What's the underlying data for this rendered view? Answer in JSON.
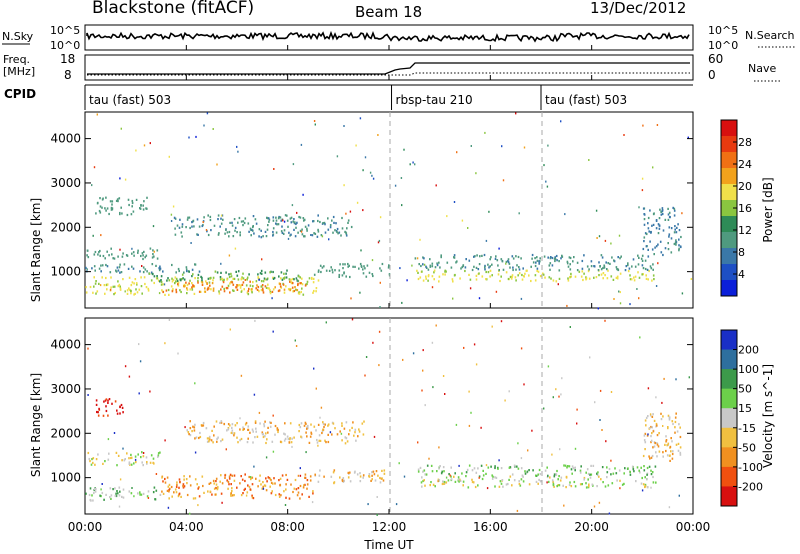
{
  "header": {
    "station": "Blackstone (fitACF)",
    "beam": "Beam 18",
    "date": "13/Dec/2012"
  },
  "noise_panel": {
    "left_label": "N.Sky",
    "left_ticks": [
      "10^5",
      "10^0"
    ],
    "right_ticks": [
      "10^5",
      "10^0"
    ],
    "right_label": "N.Search"
  },
  "freq_panel": {
    "left_label_1": "Freq.",
    "left_label_2": "[MHz]",
    "left_ticks": [
      "18",
      "8"
    ],
    "right_ticks": [
      "60",
      "0"
    ],
    "right_label": "Nave"
  },
  "cpid": {
    "label": "CPID",
    "segments": [
      {
        "name": "tau (fast) 503",
        "start_hour": 0
      },
      {
        "name": "rbsp-tau 210",
        "start_hour": 12.1
      },
      {
        "name": "tau (fast) 503",
        "start_hour": 18
      }
    ]
  },
  "x_axis": {
    "label": "Time UT",
    "ticks": [
      "00:00",
      "04:00",
      "08:00",
      "12:00",
      "16:00",
      "20:00",
      "00:00"
    ],
    "range_hours": [
      0,
      24
    ]
  },
  "chart_data": [
    {
      "type": "heatmap",
      "name": "power",
      "ylabel": "Slant Range [km]",
      "yticks": [
        "1000",
        "2000",
        "3000",
        "4000"
      ],
      "ylim": [
        180,
        4600
      ],
      "colorbar": {
        "label": "Power [dB]",
        "ticks": [
          "4",
          "8",
          "12",
          "16",
          "20",
          "24",
          "28"
        ],
        "range": [
          0,
          32
        ],
        "colors": [
          "#0b1fd9",
          "#1d4fc4",
          "#3a78a8",
          "#4f9a7f",
          "#2e8b57",
          "#8ac640",
          "#f0e04a",
          "#f2a21c",
          "#f07014",
          "#e83a10",
          "#d80f0f"
        ]
      },
      "bands": [
        {
          "t0": 0.0,
          "t1": 9.2,
          "r0": 500,
          "r1": 900,
          "level": 18
        },
        {
          "t0": 3.0,
          "t1": 8.8,
          "r0": 550,
          "r1": 800,
          "level": 24
        },
        {
          "t0": 0.0,
          "t1": 3.0,
          "r0": 1300,
          "r1": 1550,
          "level": 10
        },
        {
          "t0": 0.0,
          "t1": 4.5,
          "r0": 1000,
          "r1": 1200,
          "level": 8
        },
        {
          "t0": 2.5,
          "t1": 8.5,
          "r0": 800,
          "r1": 1050,
          "level": 14
        },
        {
          "t0": 3.5,
          "t1": 10.5,
          "r0": 1800,
          "r1": 2300,
          "level": 8
        },
        {
          "t0": 0.3,
          "t1": 2.5,
          "r0": 2300,
          "r1": 2700,
          "level": 9
        },
        {
          "t0": 9.0,
          "t1": 12.0,
          "r0": 900,
          "r1": 1200,
          "level": 9
        },
        {
          "t0": 13.0,
          "t1": 22.5,
          "r0": 800,
          "r1": 1050,
          "level": 18
        },
        {
          "t0": 13.0,
          "t1": 22.5,
          "r0": 1050,
          "r1": 1400,
          "level": 8
        },
        {
          "t0": 22.0,
          "t1": 23.5,
          "r0": 1400,
          "r1": 2500,
          "level": 7
        }
      ]
    },
    {
      "type": "heatmap",
      "name": "velocity",
      "ylabel": "Slant Range [km]",
      "yticks": [
        "1000",
        "2000",
        "3000",
        "4000"
      ],
      "ylim": [
        180,
        4600
      ],
      "colorbar": {
        "label": "Velocity [m s^-1]",
        "ticks": [
          "200",
          "100",
          "50",
          "15",
          "-15",
          "-50",
          "-100",
          "-200"
        ],
        "colors": [
          "#1a2fc6",
          "#2e6f9e",
          "#3c9a4a",
          "#6cd04a",
          "#c8c8c8",
          "#f0c040",
          "#f09020",
          "#f05010",
          "#d81010"
        ]
      },
      "bands": [
        {
          "t0": 0.0,
          "t1": 3.0,
          "r0": 500,
          "r1": 800,
          "level": 3
        },
        {
          "t0": 3.0,
          "t1": 9.0,
          "r0": 550,
          "r1": 1100,
          "level": 6
        },
        {
          "t0": 0.0,
          "t1": 3.0,
          "r0": 1300,
          "r1": 1600,
          "level": 4
        },
        {
          "t0": 0.3,
          "t1": 1.5,
          "r0": 2400,
          "r1": 2800,
          "level": 8
        },
        {
          "t0": 4.0,
          "t1": 11.0,
          "r0": 1800,
          "r1": 2300,
          "level": 5
        },
        {
          "t0": 9.0,
          "t1": 12.0,
          "r0": 900,
          "r1": 1200,
          "level": 5
        },
        {
          "t0": 13.0,
          "t1": 22.5,
          "r0": 800,
          "r1": 1050,
          "level": 4
        },
        {
          "t0": 13.0,
          "t1": 22.5,
          "r0": 1050,
          "r1": 1300,
          "level": 3
        },
        {
          "t0": 22.0,
          "t1": 23.5,
          "r0": 1400,
          "r1": 2500,
          "level": 5
        }
      ]
    }
  ]
}
